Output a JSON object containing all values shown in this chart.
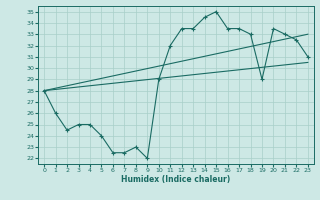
{
  "xlabel": "Humidex (Indice chaleur)",
  "bg_color": "#cde8e5",
  "grid_color": "#a8cfc9",
  "line_color": "#1a6b63",
  "xlim": [
    -0.5,
    23.5
  ],
  "ylim": [
    21.5,
    35.5
  ],
  "xticks": [
    0,
    1,
    2,
    3,
    4,
    5,
    6,
    7,
    8,
    9,
    10,
    11,
    12,
    13,
    14,
    15,
    16,
    17,
    18,
    19,
    20,
    21,
    22,
    23
  ],
  "yticks": [
    22,
    23,
    24,
    25,
    26,
    27,
    28,
    29,
    30,
    31,
    32,
    33,
    34,
    35
  ],
  "hours": [
    0,
    1,
    2,
    3,
    4,
    5,
    6,
    7,
    8,
    9,
    10,
    11,
    12,
    13,
    14,
    15,
    16,
    17,
    18,
    19,
    20,
    21,
    22,
    23
  ],
  "main_line": [
    28,
    26,
    24.5,
    25,
    25,
    24,
    22.5,
    22.5,
    23,
    22,
    29,
    32,
    33.5,
    33.5,
    34.5,
    35,
    33.5,
    33.5,
    33,
    29,
    33.5,
    33,
    32.5,
    31
  ],
  "upper_line_x": [
    0,
    23
  ],
  "upper_line_y": [
    28,
    33.0
  ],
  "lower_line_x": [
    0,
    23
  ],
  "lower_line_y": [
    28,
    30.5
  ]
}
